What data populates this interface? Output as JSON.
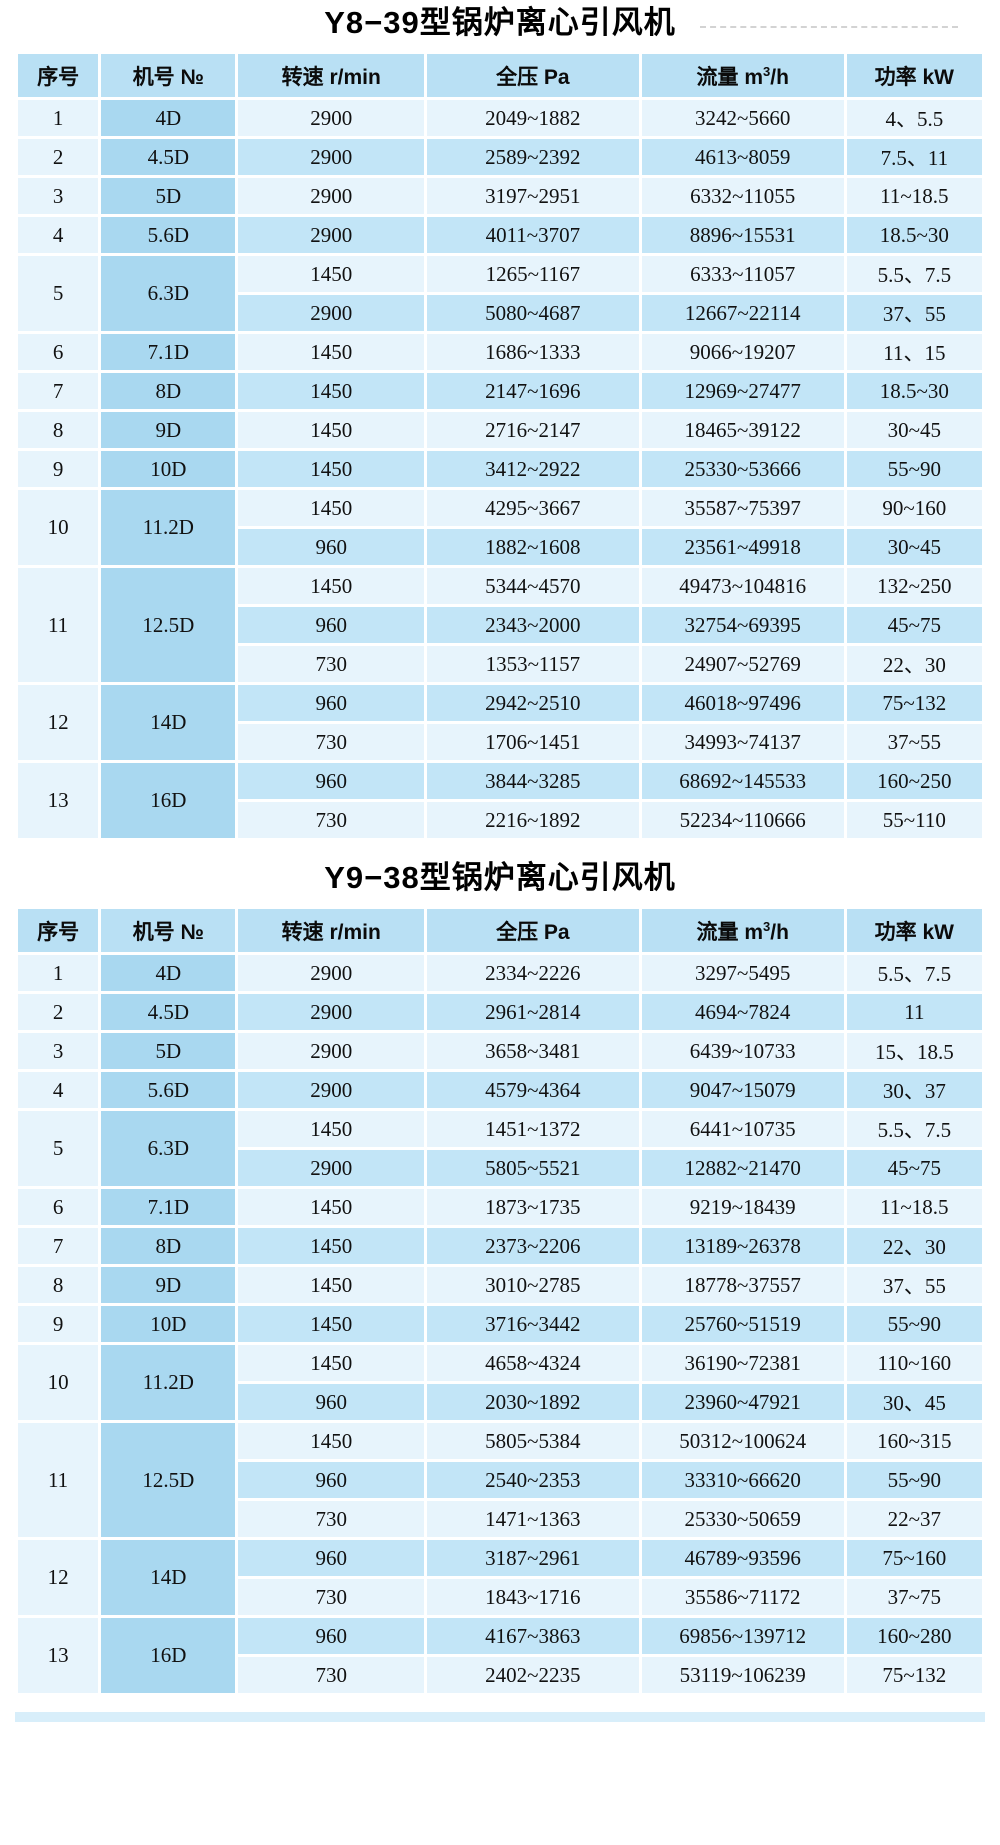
{
  "colors": {
    "header_bg": "#b9e0f4",
    "seq_column_bg": "#e7f4fc",
    "model_column_bg": "#a9d8f0",
    "row_stripe_light": "#e7f4fc",
    "row_stripe_dark": "#c2e5f7",
    "text": "#141414"
  },
  "column_keys": [
    "seq",
    "model",
    "speed",
    "pressure",
    "flow",
    "power"
  ],
  "tables": [
    {
      "title": "Y8−39型锅炉离心引风机",
      "headers": [
        {
          "key": "seq",
          "text": "序号"
        },
        {
          "key": "model",
          "text": "机号 №"
        },
        {
          "key": "speed",
          "text": "转速 r/min"
        },
        {
          "key": "pressure",
          "text": "全压 Pa"
        },
        {
          "key": "flow",
          "pre": "流量 m",
          "sup": "3",
          "post": "/h"
        },
        {
          "key": "power",
          "text": "功率 kW"
        }
      ],
      "groups": [
        {
          "seq": "1",
          "model": "4D",
          "rows": [
            [
              "2900",
              "2049~1882",
              "3242~5660",
              "4、5.5"
            ]
          ]
        },
        {
          "seq": "2",
          "model": "4.5D",
          "rows": [
            [
              "2900",
              "2589~2392",
              "4613~8059",
              "7.5、11"
            ]
          ]
        },
        {
          "seq": "3",
          "model": "5D",
          "rows": [
            [
              "2900",
              "3197~2951",
              "6332~11055",
              "11~18.5"
            ]
          ]
        },
        {
          "seq": "4",
          "model": "5.6D",
          "rows": [
            [
              "2900",
              "4011~3707",
              "8896~15531",
              "18.5~30"
            ]
          ]
        },
        {
          "seq": "5",
          "model": "6.3D",
          "rows": [
            [
              "1450",
              "1265~1167",
              "6333~11057",
              "5.5、7.5"
            ],
            [
              "2900",
              "5080~4687",
              "12667~22114",
              "37、55"
            ]
          ]
        },
        {
          "seq": "6",
          "model": "7.1D",
          "rows": [
            [
              "1450",
              "1686~1333",
              "9066~19207",
              "11、15"
            ]
          ]
        },
        {
          "seq": "7",
          "model": "8D",
          "rows": [
            [
              "1450",
              "2147~1696",
              "12969~27477",
              "18.5~30"
            ]
          ]
        },
        {
          "seq": "8",
          "model": "9D",
          "rows": [
            [
              "1450",
              "2716~2147",
              "18465~39122",
              "30~45"
            ]
          ]
        },
        {
          "seq": "9",
          "model": "10D",
          "rows": [
            [
              "1450",
              "3412~2922",
              "25330~53666",
              "55~90"
            ]
          ]
        },
        {
          "seq": "10",
          "model": "11.2D",
          "rows": [
            [
              "1450",
              "4295~3667",
              "35587~75397",
              "90~160"
            ],
            [
              "960",
              "1882~1608",
              "23561~49918",
              "30~45"
            ]
          ]
        },
        {
          "seq": "11",
          "model": "12.5D",
          "rows": [
            [
              "1450",
              "5344~4570",
              "49473~104816",
              "132~250"
            ],
            [
              "960",
              "2343~2000",
              "32754~69395",
              "45~75"
            ],
            [
              "730",
              "1353~1157",
              "24907~52769",
              "22、30"
            ]
          ]
        },
        {
          "seq": "12",
          "model": "14D",
          "rows": [
            [
              "960",
              "2942~2510",
              "46018~97496",
              "75~132"
            ],
            [
              "730",
              "1706~1451",
              "34993~74137",
              "37~55"
            ]
          ]
        },
        {
          "seq": "13",
          "model": "16D",
          "rows": [
            [
              "960",
              "3844~3285",
              "68692~145533",
              "160~250"
            ],
            [
              "730",
              "2216~1892",
              "52234~110666",
              "55~110"
            ]
          ]
        }
      ]
    },
    {
      "title": "Y9−38型锅炉离心引风机",
      "headers": [
        {
          "key": "seq",
          "text": "序号"
        },
        {
          "key": "model",
          "text": "机号 №"
        },
        {
          "key": "speed",
          "text": "转速 r/min"
        },
        {
          "key": "pressure",
          "text": "全压 Pa"
        },
        {
          "key": "flow",
          "pre": "流量 m",
          "sup": "3",
          "post": "/h"
        },
        {
          "key": "power",
          "text": "功率 kW"
        }
      ],
      "groups": [
        {
          "seq": "1",
          "model": "4D",
          "rows": [
            [
              "2900",
              "2334~2226",
              "3297~5495",
              "5.5、7.5"
            ]
          ]
        },
        {
          "seq": "2",
          "model": "4.5D",
          "rows": [
            [
              "2900",
              "2961~2814",
              "4694~7824",
              "11"
            ]
          ]
        },
        {
          "seq": "3",
          "model": "5D",
          "rows": [
            [
              "2900",
              "3658~3481",
              "6439~10733",
              "15、18.5"
            ]
          ]
        },
        {
          "seq": "4",
          "model": "5.6D",
          "rows": [
            [
              "2900",
              "4579~4364",
              "9047~15079",
              "30、37"
            ]
          ]
        },
        {
          "seq": "5",
          "model": "6.3D",
          "rows": [
            [
              "1450",
              "1451~1372",
              "6441~10735",
              "5.5、7.5"
            ],
            [
              "2900",
              "5805~5521",
              "12882~21470",
              "45~75"
            ]
          ]
        },
        {
          "seq": "6",
          "model": "7.1D",
          "rows": [
            [
              "1450",
              "1873~1735",
              "9219~18439",
              "11~18.5"
            ]
          ]
        },
        {
          "seq": "7",
          "model": "8D",
          "rows": [
            [
              "1450",
              "2373~2206",
              "13189~26378",
              "22、30"
            ]
          ]
        },
        {
          "seq": "8",
          "model": "9D",
          "rows": [
            [
              "1450",
              "3010~2785",
              "18778~37557",
              "37、55"
            ]
          ]
        },
        {
          "seq": "9",
          "model": "10D",
          "rows": [
            [
              "1450",
              "3716~3442",
              "25760~51519",
              "55~90"
            ]
          ]
        },
        {
          "seq": "10",
          "model": "11.2D",
          "rows": [
            [
              "1450",
              "4658~4324",
              "36190~72381",
              "110~160"
            ],
            [
              "960",
              "2030~1892",
              "23960~47921",
              "30、45"
            ]
          ]
        },
        {
          "seq": "11",
          "model": "12.5D",
          "rows": [
            [
              "1450",
              "5805~5384",
              "50312~100624",
              "160~315"
            ],
            [
              "960",
              "2540~2353",
              "33310~66620",
              "55~90"
            ],
            [
              "730",
              "1471~1363",
              "25330~50659",
              "22~37"
            ]
          ]
        },
        {
          "seq": "12",
          "model": "14D",
          "rows": [
            [
              "960",
              "3187~2961",
              "46789~93596",
              "75~160"
            ],
            [
              "730",
              "1843~1716",
              "35586~71172",
              "37~75"
            ]
          ]
        },
        {
          "seq": "13",
          "model": "16D",
          "rows": [
            [
              "960",
              "4167~3863",
              "69856~139712",
              "160~280"
            ],
            [
              "730",
              "2402~2235",
              "53119~106239",
              "75~132"
            ]
          ]
        }
      ]
    }
  ]
}
